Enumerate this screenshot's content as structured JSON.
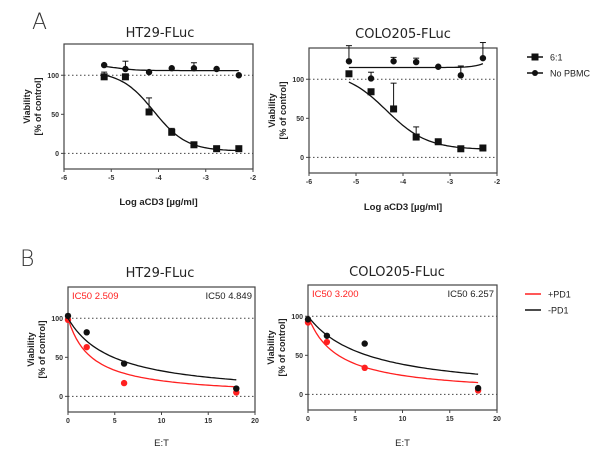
{
  "panel_labels": [
    "A",
    "B"
  ],
  "chart_data": [
    {
      "type": "scatter",
      "title": "HT29-FLuc",
      "xlabel": "Log aCD3 [µg/ml]",
      "ylabel": [
        "Viability",
        "[% of control]"
      ],
      "xlim": [
        -6,
        -2
      ],
      "ylim": [
        -20,
        140
      ],
      "xticks": [
        -6,
        -5,
        -4,
        -3,
        -2
      ],
      "yticks": [
        0,
        50,
        100
      ],
      "reference_lines": [
        0,
        100
      ],
      "series": [
        {
          "name": "6:1",
          "marker": "square",
          "x": [
            -5.15,
            -4.7,
            -4.2,
            -3.72,
            -3.25,
            -2.77,
            -2.3
          ],
          "y": [
            98,
            98,
            53,
            27,
            11,
            6,
            6
          ],
          "error_up": [
            6,
            0,
            18,
            5,
            0,
            0,
            0
          ]
        },
        {
          "name": "No PBMC",
          "marker": "circle",
          "x": [
            -5.15,
            -4.7,
            -4.2,
            -3.72,
            -3.25,
            -2.77,
            -2.3
          ],
          "y": [
            113,
            108,
            104,
            109,
            109,
            108,
            100
          ],
          "error_up": [
            0,
            10,
            0,
            0,
            7,
            0,
            0
          ]
        }
      ]
    },
    {
      "type": "scatter",
      "title": "COLO205-FLuc",
      "xlabel": "Log aCD3 [µg/ml]",
      "ylabel": [
        "Viability",
        "[% of control]"
      ],
      "xlim": [
        -6,
        -2
      ],
      "ylim": [
        -20,
        140
      ],
      "xticks": [
        -6,
        -5,
        -4,
        -3,
        -2
      ],
      "yticks": [
        0,
        50,
        100
      ],
      "reference_lines": [
        0,
        100
      ],
      "legend": "right",
      "series": [
        {
          "name": "6:1",
          "marker": "square",
          "x": [
            -5.15,
            -4.68,
            -4.2,
            -3.72,
            -3.25,
            -2.77,
            -2.3
          ],
          "y": [
            107,
            84,
            62,
            26,
            20,
            11,
            12
          ],
          "error_up": [
            0,
            0,
            33,
            13,
            0,
            0,
            0
          ]
        },
        {
          "name": "No PBMC",
          "marker": "circle",
          "x": [
            -5.15,
            -4.68,
            -4.2,
            -3.72,
            -3.25,
            -2.77,
            -2.3
          ],
          "y": [
            123,
            101,
            123,
            122,
            116,
            105,
            127
          ],
          "error_up": [
            20,
            8,
            5,
            5,
            0,
            12,
            20
          ]
        }
      ]
    },
    {
      "type": "scatter",
      "title": "HT29-FLuc",
      "xlabel": "E:T",
      "ylabel": [
        "Viability",
        "[% of control]"
      ],
      "xlim": [
        0,
        20
      ],
      "ylim": [
        -20,
        140
      ],
      "xticks": [
        0,
        5,
        10,
        15,
        20
      ],
      "yticks": [
        0,
        50,
        100
      ],
      "reference_lines": [
        0,
        100
      ],
      "series": [
        {
          "name": "+PD1",
          "color": "#ff2020",
          "ic50_label": "IC50  2.509",
          "ic50": 2.509,
          "x": [
            0,
            2,
            6,
            18
          ],
          "y": [
            98,
            63,
            17,
            5
          ]
        },
        {
          "name": "-PD1",
          "color": "#111111",
          "ic50_label": "IC50  4.849",
          "ic50": 4.849,
          "x": [
            0,
            2,
            6,
            18
          ],
          "y": [
            103,
            82,
            42,
            10
          ]
        }
      ]
    },
    {
      "type": "scatter",
      "title": "COLO205-FLuc",
      "xlabel": "E:T",
      "ylabel": [
        "Viability",
        "[% of control]"
      ],
      "xlim": [
        0,
        20
      ],
      "ylim": [
        -20,
        140
      ],
      "xticks": [
        0,
        5,
        10,
        15,
        20
      ],
      "yticks": [
        0,
        50,
        100
      ],
      "reference_lines": [
        0,
        100
      ],
      "legend": "right",
      "series": [
        {
          "name": "+PD1",
          "color": "#ff2020",
          "ic50_label": "IC50  3.200",
          "ic50": 3.2,
          "x": [
            0,
            2,
            6,
            18
          ],
          "y": [
            92,
            67,
            34,
            5
          ]
        },
        {
          "name": "-PD1",
          "color": "#111111",
          "ic50_label": "IC50  6.257",
          "ic50": 6.257,
          "x": [
            0,
            2,
            6,
            18
          ],
          "y": [
            96,
            75,
            65,
            8
          ]
        }
      ]
    }
  ]
}
